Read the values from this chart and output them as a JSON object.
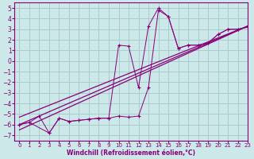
{
  "background_color": "#cce8e8",
  "grid_color": "#aacccc",
  "line_color": "#880077",
  "xlabel": "Windchill (Refroidissement éolien,°C)",
  "xlim": [
    -0.5,
    23
  ],
  "ylim": [
    -7.5,
    5.5
  ],
  "xticks": [
    0,
    1,
    2,
    3,
    4,
    5,
    6,
    7,
    8,
    9,
    10,
    11,
    12,
    13,
    14,
    15,
    16,
    17,
    18,
    19,
    20,
    21,
    22,
    23
  ],
  "yticks": [
    -7,
    -6,
    -5,
    -4,
    -3,
    -2,
    -1,
    0,
    1,
    2,
    3,
    4,
    5
  ],
  "series1_x": [
    0,
    1,
    2,
    3,
    4,
    5,
    6,
    7,
    8,
    9,
    10,
    11,
    12,
    13,
    14,
    15,
    16,
    17,
    18,
    19,
    20,
    21,
    22,
    23
  ],
  "series1_y": [
    -6.0,
    -5.8,
    -5.2,
    -6.8,
    -5.4,
    -5.7,
    -5.6,
    -5.5,
    -5.4,
    -5.4,
    -5.2,
    -5.3,
    -5.2,
    -2.5,
    4.8,
    4.2,
    1.2,
    1.5,
    1.5,
    1.7,
    2.5,
    3.0,
    3.0,
    3.2
  ],
  "series2_x": [
    0,
    1,
    3,
    4,
    5,
    6,
    7,
    8,
    9,
    10,
    11,
    12,
    13,
    14,
    15,
    16,
    17,
    18,
    19,
    20,
    21,
    22,
    23
  ],
  "series2_y": [
    -6.0,
    -5.8,
    -6.8,
    -5.4,
    -5.7,
    -5.6,
    -5.5,
    -5.4,
    -5.4,
    1.5,
    1.4,
    -2.5,
    3.3,
    5.0,
    4.2,
    1.2,
    1.5,
    1.5,
    1.7,
    2.5,
    3.0,
    3.0,
    3.2
  ],
  "reg_lines": [
    {
      "x": [
        0,
        23
      ],
      "y": [
        -6.5,
        3.3
      ]
    },
    {
      "x": [
        0,
        23
      ],
      "y": [
        -5.3,
        3.3
      ]
    },
    {
      "x": [
        0,
        23
      ],
      "y": [
        -6.0,
        3.3
      ]
    }
  ],
  "tick_fontsize": 5,
  "xlabel_fontsize": 5.5
}
